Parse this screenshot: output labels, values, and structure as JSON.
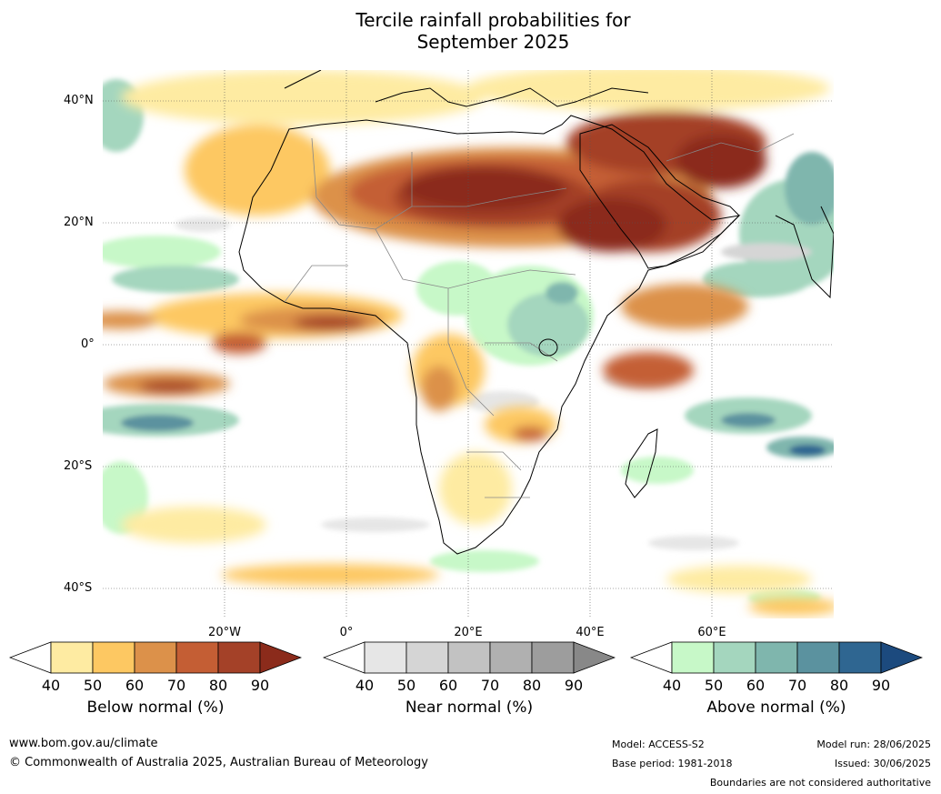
{
  "title": {
    "line1": "Tercile rainfall probabilities for",
    "line2": "September 2025"
  },
  "map": {
    "region": "Africa and surrounding oceans",
    "lat_labels": [
      "40°N",
      "20°N",
      "0°",
      "20°S",
      "40°S"
    ],
    "lon_labels": [
      "20°W",
      "0°",
      "20°E",
      "40°E",
      "60°E"
    ],
    "graticule": "dotted",
    "colors": {
      "ocean_bg": "#ffffff",
      "coast": "#000000",
      "borders": "#888888"
    }
  },
  "colorbars": [
    {
      "title": "Below normal (%)",
      "ticks": [
        "40",
        "50",
        "60",
        "70",
        "80",
        "90"
      ],
      "colors": [
        "#ffffff",
        "#feeba2",
        "#fdc862",
        "#dc914a",
        "#c45e34",
        "#a44128",
        "#8b2b1b"
      ]
    },
    {
      "title": "Near normal (%)",
      "ticks": [
        "40",
        "50",
        "60",
        "70",
        "80",
        "90"
      ],
      "colors": [
        "#ffffff",
        "#e6e6e6",
        "#d5d5d5",
        "#c2c2c2",
        "#b0b0b0",
        "#9d9d9d",
        "#888888"
      ]
    },
    {
      "title": "Above normal (%)",
      "ticks": [
        "40",
        "50",
        "60",
        "70",
        "80",
        "90"
      ],
      "colors": [
        "#ffffff",
        "#c7f8c8",
        "#a4d6be",
        "#7fb6ad",
        "#5b929f",
        "#2f6691",
        "#1c4a7e"
      ]
    }
  ],
  "footer": {
    "url": "www.bom.gov.au/climate",
    "copyright": "© Commonwealth of Australia 2025, Australian Bureau of Meteorology",
    "model": "Model: ACCESS-S2",
    "base_period": "Base period: 1981-2018",
    "model_run": "Model run: 28/06/2025",
    "issued": "Issued: 30/06/2025",
    "disclaimer": "Boundaries are not considered authoritative"
  }
}
